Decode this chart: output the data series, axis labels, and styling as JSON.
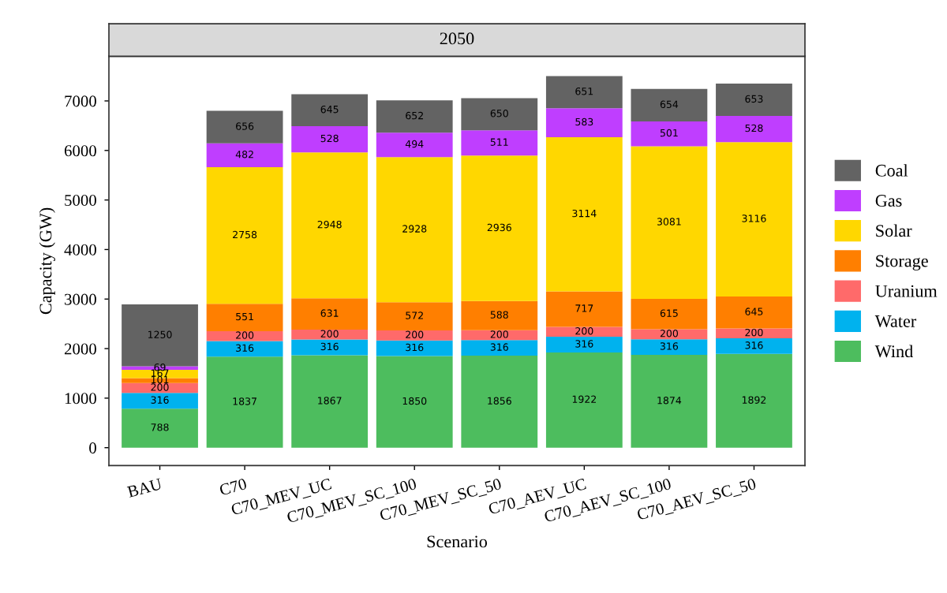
{
  "chart_data": {
    "type": "bar",
    "stacked": true,
    "title": "2050",
    "xlabel": "Scenario",
    "ylabel": "Capacity (GW)",
    "categories": [
      "BAU",
      "C70",
      "C70_MEV_UC",
      "C70_MEV_SC_100",
      "C70_MEV_SC_50",
      "C70_AEV_UC",
      "C70_AEV_SC_100",
      "C70_AEV_SC_50"
    ],
    "series": [
      {
        "name": "Wind",
        "color": "#4dbd5e",
        "values": [
          788,
          1837,
          1867,
          1850,
          1856,
          1922,
          1874,
          1892
        ]
      },
      {
        "name": "Water",
        "color": "#00b2ee",
        "values": [
          316,
          316,
          316,
          316,
          316,
          316,
          316,
          316
        ]
      },
      {
        "name": "Uranium",
        "color": "#ff6a6a",
        "values": [
          200,
          200,
          200,
          200,
          200,
          200,
          200,
          200
        ]
      },
      {
        "name": "Storage",
        "color": "#ff7f00",
        "values": [
          101,
          551,
          631,
          572,
          588,
          717,
          615,
          645
        ]
      },
      {
        "name": "Solar",
        "color": "#ffd700",
        "values": [
          167,
          2758,
          2948,
          2928,
          2936,
          3114,
          3081,
          3116
        ]
      },
      {
        "name": "Gas",
        "color": "#bf3eff",
        "values": [
          69,
          482,
          528,
          494,
          511,
          583,
          501,
          528
        ]
      },
      {
        "name": "Coal",
        "color": "#636363",
        "values": [
          1250,
          656,
          645,
          652,
          650,
          651,
          654,
          653
        ]
      }
    ],
    "ylim": [
      -360,
      7900
    ],
    "yticks": [
      0,
      1000,
      2000,
      3000,
      4000,
      5000,
      6000,
      7000
    ],
    "data_labels": true,
    "legend": "right",
    "grid": false
  }
}
